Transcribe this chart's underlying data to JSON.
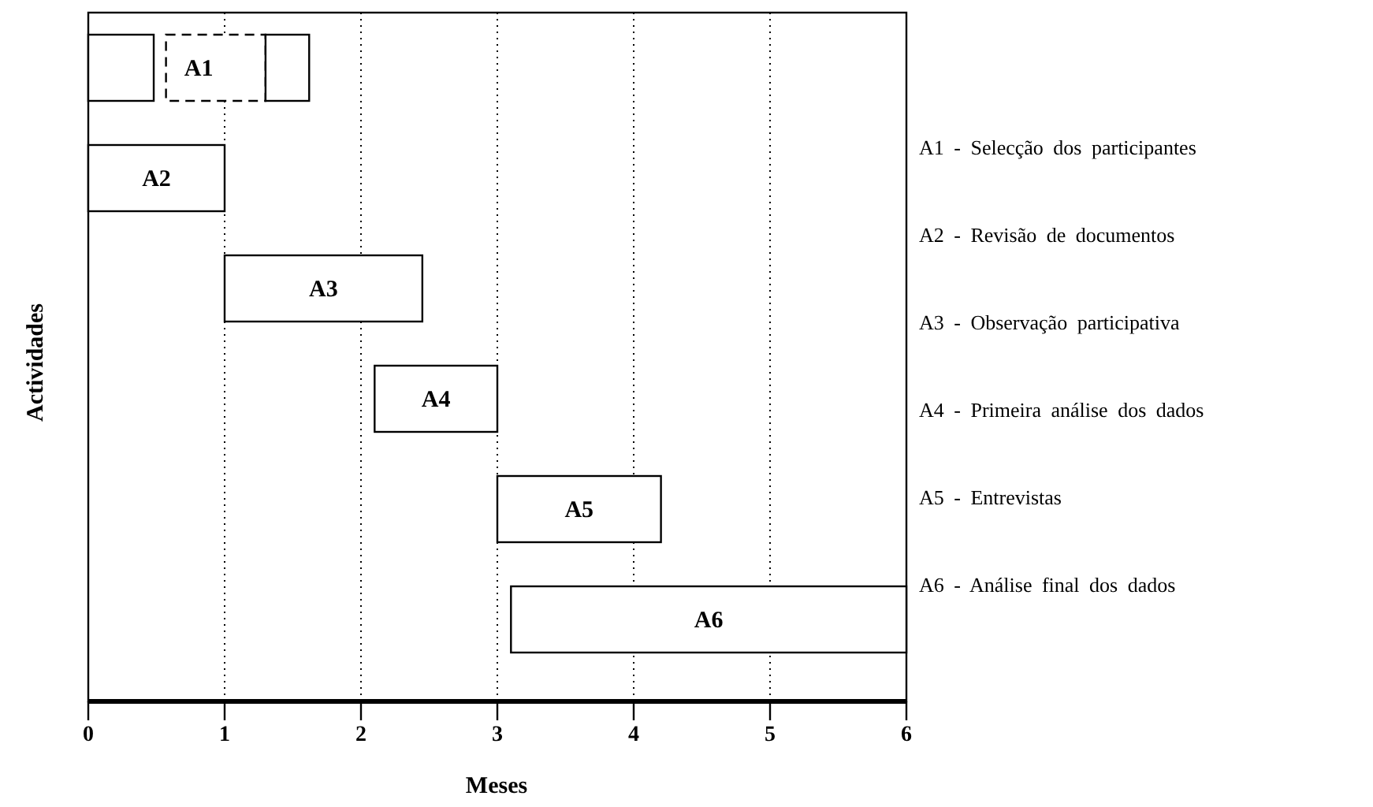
{
  "chart_data": {
    "type": "bar",
    "orientation": "horizontal",
    "xlabel": "Meses",
    "ylabel": "Actividades",
    "categories": [
      "A1",
      "A2",
      "A3",
      "A4",
      "A5",
      "A6"
    ],
    "series": [
      {
        "color": "#ffffff",
        "line_style": "solid",
        "base": [
          0,
          0,
          1,
          2.1,
          3,
          3.1
        ],
        "values": [
          0.48,
          1,
          1.45,
          0.9,
          1.2,
          2.9
        ]
      },
      {
        "color": "#ffffff",
        "line_style": "dashed",
        "base": [
          0.57,
          null,
          null,
          null,
          null,
          null
        ],
        "values": [
          0.73,
          null,
          null,
          null,
          null,
          null
        ]
      },
      {
        "color": "#ffffff",
        "line_style": "solid",
        "base": [
          1.3,
          null,
          null,
          null,
          null,
          null
        ],
        "values": [
          0.32,
          null,
          null,
          null,
          null,
          null
        ]
      }
    ],
    "xlim": [
      0,
      6
    ],
    "xticks": [
      0,
      1,
      2,
      3,
      4,
      5,
      6
    ],
    "grid": "x",
    "tick_labels": "x",
    "annotations": [
      "A1 - Selecção dos participantes",
      "A2 - Revisão de documentos",
      "A3 - Observação participativa",
      "A4 - Primeira análise dos dados",
      "A5 - Entrevistas",
      "A6 - Análise final dos dados"
    ]
  }
}
